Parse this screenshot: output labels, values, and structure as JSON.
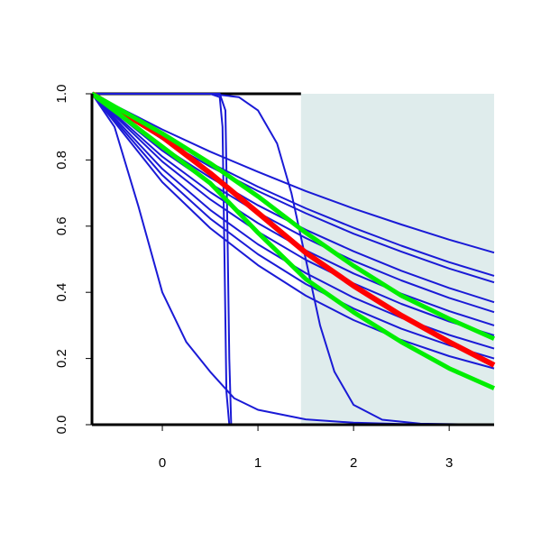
{
  "chart_data": {
    "type": "line",
    "xlim": [
      -0.736,
      3.47
    ],
    "ylim": [
      0,
      1
    ],
    "xticks": [
      0,
      1,
      2,
      3
    ],
    "yticks": [
      {
        "value": 0,
        "label": "0.0"
      },
      {
        "value": 0.2,
        "label": "0.2"
      },
      {
        "value": 0.4,
        "label": "0.4"
      },
      {
        "value": 0.6,
        "label": "0.6"
      },
      {
        "value": 0.8,
        "label": "0.8"
      },
      {
        "value": 1,
        "label": "1.0"
      }
    ],
    "shaded_region": {
      "x": [
        1.45,
        3.47
      ],
      "color": "#dfecec"
    },
    "series": [
      {
        "color": "#000000",
        "width": 3,
        "x": [
          -0.736,
          1.45
        ],
        "values": [
          1,
          1
        ]
      },
      {
        "color": "#1a1ad6",
        "width": 2,
        "x": [
          -0.736,
          0,
          0.5,
          1,
          1.5,
          2,
          2.5,
          3,
          3.47
        ],
        "values": [
          1,
          0.892,
          0.825,
          0.764,
          0.706,
          0.653,
          0.605,
          0.559,
          0.52
        ]
      },
      {
        "color": "#1a1ad6",
        "width": 2,
        "x": [
          -0.736,
          0,
          0.5,
          1,
          1.5,
          2,
          2.5,
          3,
          3.47
        ],
        "values": [
          1,
          0.87,
          0.791,
          0.719,
          0.654,
          0.595,
          0.541,
          0.491,
          0.45
        ]
      },
      {
        "color": "#1a1ad6",
        "width": 2,
        "x": [
          -0.736,
          0,
          0.5,
          1,
          1.5,
          2,
          2.5,
          3,
          3.47
        ],
        "values": [
          1,
          0.863,
          0.78,
          0.706,
          0.639,
          0.577,
          0.523,
          0.472,
          0.43
        ]
      },
      {
        "color": "#1a1ad6",
        "width": 2,
        "x": [
          -0.736,
          0,
          0.5,
          1,
          1.5,
          2,
          2.5,
          3,
          3.47
        ],
        "values": [
          1,
          0.84,
          0.747,
          0.663,
          0.589,
          0.524,
          0.465,
          0.413,
          0.37
        ]
      },
      {
        "color": "#1a1ad6",
        "width": 2,
        "x": [
          -0.736,
          0,
          0.5,
          1,
          1.5,
          2,
          2.5,
          3,
          3.47
        ],
        "values": [
          1,
          0.828,
          0.729,
          0.641,
          0.564,
          0.495,
          0.436,
          0.383,
          0.34
        ]
      },
      {
        "color": "#1a1ad6",
        "width": 2,
        "x": [
          -0.736,
          0,
          0.5,
          1,
          1.5,
          2,
          2.5,
          3,
          3.47
        ],
        "values": [
          1,
          0.81,
          0.703,
          0.609,
          0.527,
          0.457,
          0.396,
          0.343,
          0.3
        ]
      },
      {
        "color": "#1a1ad6",
        "width": 2,
        "x": [
          -0.736,
          0,
          0.5,
          1,
          1.5,
          2,
          2.5,
          3,
          3.47
        ],
        "values": [
          1,
          0.795,
          0.681,
          0.583,
          0.498,
          0.427,
          0.365,
          0.312,
          0.27
        ]
      },
      {
        "color": "#1a1ad6",
        "width": 2,
        "x": [
          -0.736,
          0,
          0.5,
          1,
          1.5,
          2,
          2.5,
          3,
          3.47
        ],
        "values": [
          1,
          0.773,
          0.649,
          0.545,
          0.458,
          0.384,
          0.323,
          0.271,
          0.23
        ]
      },
      {
        "color": "#1a1ad6",
        "width": 2,
        "x": [
          -0.736,
          0,
          0.5,
          1,
          1.5,
          2,
          2.5,
          3,
          3.47
        ],
        "values": [
          1,
          0.754,
          0.623,
          0.515,
          0.425,
          0.351,
          0.29,
          0.24,
          0.2
        ]
      },
      {
        "color": "#1a1ad6",
        "width": 2,
        "x": [
          -0.736,
          0,
          0.5,
          1,
          1.5,
          2,
          2.5,
          3,
          3.47
        ],
        "values": [
          1,
          0.733,
          0.594,
          0.482,
          0.39,
          0.316,
          0.256,
          0.207,
          0.17
        ]
      },
      {
        "color": "#1a1ad6",
        "width": 2,
        "x": [
          -0.736,
          0.5,
          0.6,
          0.63,
          0.65,
          0.67,
          0.7,
          3.47
        ],
        "values": [
          1,
          1,
          0.99,
          0.9,
          0.5,
          0.1,
          0,
          0
        ]
      },
      {
        "color": "#1a1ad6",
        "width": 2,
        "x": [
          -0.736,
          0.6,
          0.66,
          0.68,
          0.7,
          0.72,
          3.47
        ],
        "values": [
          1,
          1,
          0.95,
          0.6,
          0.2,
          0,
          0
        ]
      },
      {
        "color": "#1a1ad6",
        "width": 2,
        "x": [
          -0.736,
          0.5,
          0.8,
          1,
          1.2,
          1.35,
          1.5,
          1.65,
          1.8,
          2,
          2.3,
          2.7,
          3.47
        ],
        "values": [
          1,
          1,
          0.99,
          0.95,
          0.85,
          0.7,
          0.5,
          0.3,
          0.16,
          0.06,
          0.015,
          0.003,
          0
        ]
      },
      {
        "color": "#1a1ad6",
        "width": 2,
        "x": [
          -0.736,
          -0.5,
          -0.25,
          0,
          0.25,
          0.5,
          0.75,
          1,
          1.5,
          2,
          2.5,
          3.47
        ],
        "values": [
          1,
          0.9,
          0.66,
          0.4,
          0.25,
          0.16,
          0.08,
          0.045,
          0.016,
          0.006,
          0.002,
          0
        ]
      },
      {
        "color": "#ff0000",
        "width": 6,
        "x": [
          -0.736,
          0,
          0.5,
          1,
          1.5,
          2,
          2.5,
          3,
          3.47
        ],
        "values": [
          1,
          0.87,
          0.76,
          0.64,
          0.52,
          0.42,
          0.33,
          0.25,
          0.18
        ]
      },
      {
        "color": "#00ee00",
        "width": 5,
        "x": [
          -0.736,
          0,
          0.5,
          1,
          1.5,
          2,
          2.5,
          3,
          3.47
        ],
        "values": [
          1,
          0.88,
          0.79,
          0.69,
          0.58,
          0.48,
          0.39,
          0.32,
          0.26
        ]
      },
      {
        "color": "#00ee00",
        "width": 5,
        "x": [
          -0.736,
          0,
          0.5,
          1,
          1.5,
          2,
          2.5,
          3,
          3.47
        ],
        "values": [
          1,
          0.84,
          0.73,
          0.58,
          0.44,
          0.34,
          0.25,
          0.17,
          0.11
        ]
      }
    ]
  }
}
